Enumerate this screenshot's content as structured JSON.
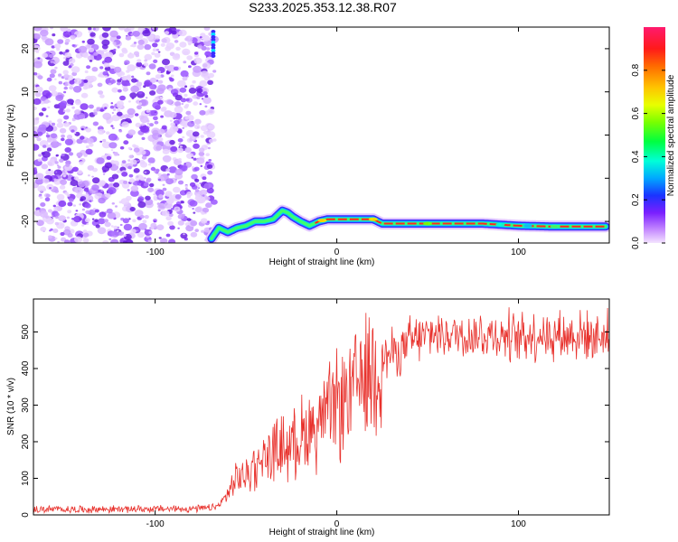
{
  "title": "S233.2025.353.12.38.R07",
  "chart_data": [
    {
      "type": "heatmap",
      "xlabel": "Height of straight line (km)",
      "ylabel": "Frequency (Hz)",
      "xlim": [
        -167,
        150
      ],
      "ylim": [
        -25,
        25
      ],
      "xticks": [
        -100,
        0,
        100
      ],
      "yticks": [
        -20,
        -10,
        0,
        10,
        20
      ],
      "noise_region_x": [
        -167,
        -69
      ],
      "tone_trace": {
        "x": [
          -69,
          -65,
          -60,
          -55,
          -50,
          -45,
          -40,
          -35,
          -30,
          -27,
          -24,
          -20,
          -15,
          -10,
          -5,
          0,
          5,
          10,
          15,
          20,
          25,
          40,
          60,
          80,
          100,
          120,
          148
        ],
        "y": [
          -24,
          -21.5,
          -22.5,
          -21.5,
          -21,
          -20,
          -20,
          -19.5,
          -17.5,
          -18,
          -19,
          -20,
          -21,
          -20,
          -19.5,
          -19.5,
          -19.5,
          -19.5,
          -19.5,
          -19.5,
          -20.5,
          -20.5,
          -20.5,
          -20.5,
          -21,
          -21.2,
          -21.2
        ]
      },
      "colorbar": {
        "label": "Normalized spectral amplitude",
        "ticks": [
          0.0,
          0.2,
          0.4,
          0.6,
          0.8
        ],
        "range": [
          0,
          1
        ]
      }
    },
    {
      "type": "line",
      "xlabel": "Height of straight line (km)",
      "ylabel": "SNR (10 * v/v)",
      "xlim": [
        -167,
        150
      ],
      "ylim": [
        0,
        590
      ],
      "xticks": [
        -100,
        0,
        100
      ],
      "yticks": [
        0,
        100,
        200,
        300,
        400,
        500
      ],
      "series": [
        {
          "name": "SNR",
          "color": "#e8322d",
          "x": [
            -167,
            -140,
            -120,
            -100,
            -80,
            -70,
            -65,
            -60,
            -55,
            -50,
            -45,
            -40,
            -35,
            -30,
            -25,
            -20,
            -15,
            -10,
            -5,
            0,
            5,
            10,
            15,
            20,
            25,
            30,
            40,
            50,
            60,
            80,
            100,
            120,
            140,
            150
          ],
          "y": [
            15,
            15,
            16,
            16,
            17,
            18,
            25,
            60,
            95,
            110,
            140,
            160,
            170,
            185,
            195,
            215,
            235,
            255,
            275,
            295,
            320,
            350,
            380,
            410,
            430,
            440,
            470,
            490,
            495,
            490,
            490,
            492,
            490,
            488
          ]
        }
      ]
    }
  ]
}
